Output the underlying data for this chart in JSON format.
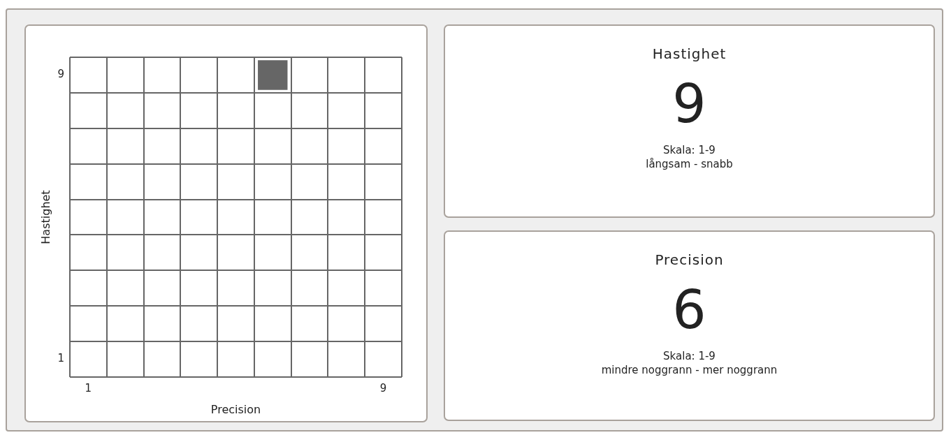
{
  "chart_data": [
    {
      "type": "scatter",
      "x": [
        6
      ],
      "values": [
        9
      ],
      "color": "#666666",
      "marker": "square",
      "xlabel": "Precision",
      "ylabel": "Hastighet",
      "xlim": [
        0.5,
        9.5
      ],
      "ylim": [
        0.5,
        9.5
      ],
      "xticks": [
        {
          "value": 0.5,
          "label": null
        },
        1,
        {
          "value": 1.5,
          "label": null
        },
        {
          "value": 2.5,
          "label": null
        },
        {
          "value": 3.5,
          "label": null
        },
        {
          "value": 4.5,
          "label": null
        },
        {
          "value": 5.5,
          "label": null
        },
        {
          "value": 6.5,
          "label": null
        },
        {
          "value": 7.5,
          "label": null
        },
        {
          "value": 8.5,
          "label": null
        },
        9,
        {
          "value": 9.5,
          "label": null
        }
      ],
      "yticks": [
        {
          "value": 0.5,
          "label": null
        },
        1,
        {
          "value": 1.5,
          "label": null
        },
        {
          "value": 2.5,
          "label": null
        },
        {
          "value": 3.5,
          "label": null
        },
        {
          "value": 4.5,
          "label": null
        },
        {
          "value": 5.5,
          "label": null
        },
        {
          "value": 6.5,
          "label": null
        },
        {
          "value": 7.5,
          "label": null
        },
        {
          "value": 8.5,
          "label": null
        },
        9,
        {
          "value": 9.5,
          "label": null
        }
      ],
      "grid": true,
      "legend": false
    },
    {
      "type": "other",
      "title": "Hastighet",
      "values": [
        9
      ],
      "data_labels": true,
      "annotations": [
        "Skala: 1-9",
        "långsam - snabb"
      ]
    },
    {
      "type": "other",
      "title": "Precision",
      "values": [
        6
      ],
      "data_labels": true,
      "annotations": [
        "Skala: 1-9",
        "mindre noggrann - mer noggrann"
      ]
    }
  ]
}
